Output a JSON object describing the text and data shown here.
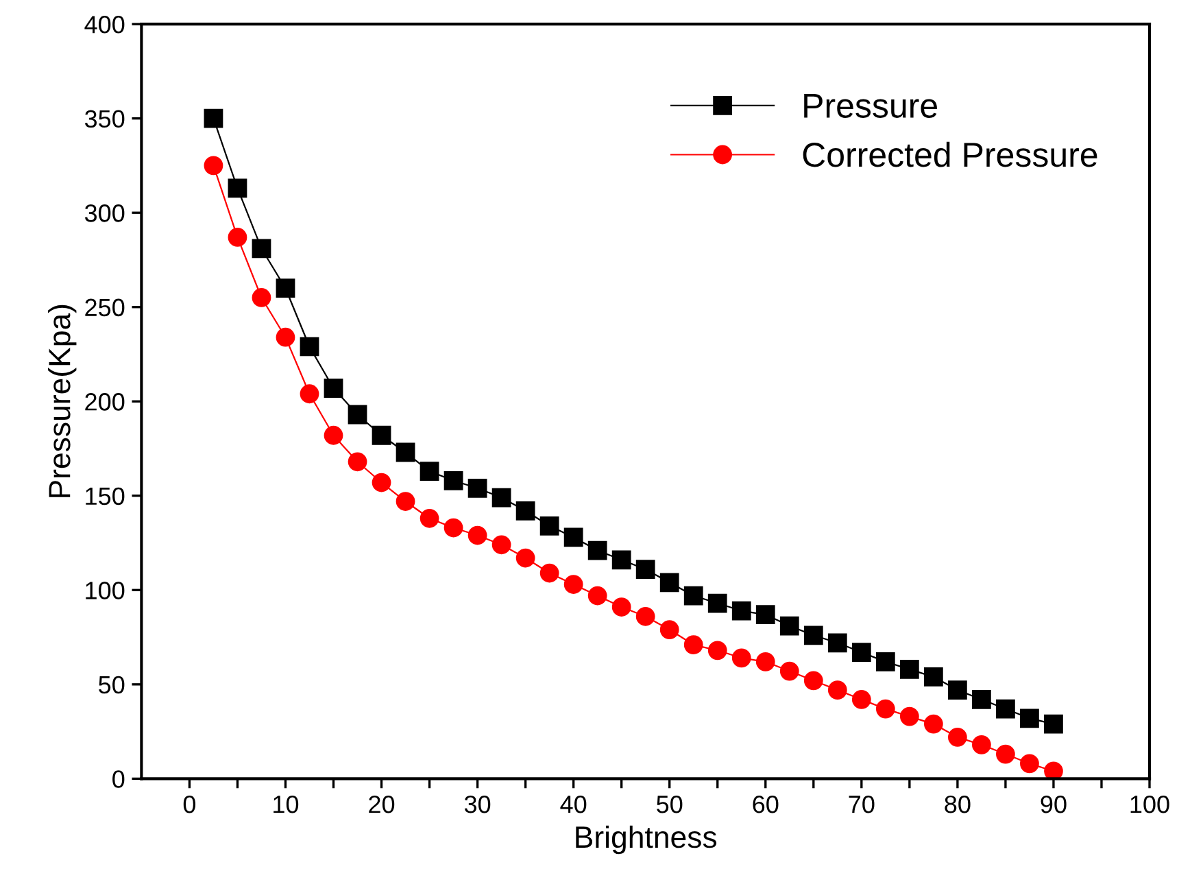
{
  "chart_data": {
    "type": "line",
    "xlabel": "Brightness",
    "ylabel": "Pressure(Kpa)",
    "x": [
      2.5,
      5,
      7.5,
      10,
      12.5,
      15,
      17.5,
      20,
      22.5,
      25,
      27.5,
      30,
      32.5,
      35,
      37.5,
      40,
      42.5,
      45,
      47.5,
      50,
      52.5,
      55,
      57.5,
      60,
      62.5,
      65,
      67.5,
      70,
      72.5,
      75,
      77.5,
      80,
      82.5,
      85,
      87.5,
      90
    ],
    "series": [
      {
        "name": "Pressure",
        "color": "#000000",
        "marker": "square",
        "values": [
          350,
          313,
          281,
          260,
          229,
          207,
          193,
          182,
          173,
          163,
          158,
          154,
          149,
          142,
          134,
          128,
          121,
          116,
          111,
          104,
          97,
          93,
          89,
          87,
          81,
          76,
          72,
          67,
          62,
          58,
          54,
          47,
          42,
          37,
          32,
          29
        ]
      },
      {
        "name": "Corrected Pressure",
        "color": "#ff0000",
        "marker": "circle",
        "values": [
          325,
          287,
          255,
          234,
          204,
          182,
          168,
          157,
          147,
          138,
          133,
          129,
          124,
          117,
          109,
          103,
          97,
          91,
          86,
          79,
          71,
          68,
          64,
          62,
          57,
          52,
          47,
          42,
          37,
          33,
          29,
          22,
          18,
          13,
          8,
          4
        ]
      }
    ],
    "xlim": [
      -5,
      100
    ],
    "ylim": [
      0,
      400
    ],
    "xticks": [
      0,
      {
        "value": 5,
        "label": null
      },
      10,
      {
        "value": 15,
        "label": null
      },
      20,
      {
        "value": 25,
        "label": null
      },
      30,
      {
        "value": 35,
        "label": null
      },
      40,
      {
        "value": 45,
        "label": null
      },
      50,
      {
        "value": 55,
        "label": null
      },
      60,
      {
        "value": 65,
        "label": null
      },
      70,
      {
        "value": 75,
        "label": null
      },
      80,
      {
        "value": 85,
        "label": null
      },
      90,
      {
        "value": 95,
        "label": null
      },
      100
    ],
    "yticks": [
      0,
      50,
      100,
      150,
      200,
      250,
      300,
      350,
      400
    ],
    "grid": false,
    "legend": "top right"
  }
}
